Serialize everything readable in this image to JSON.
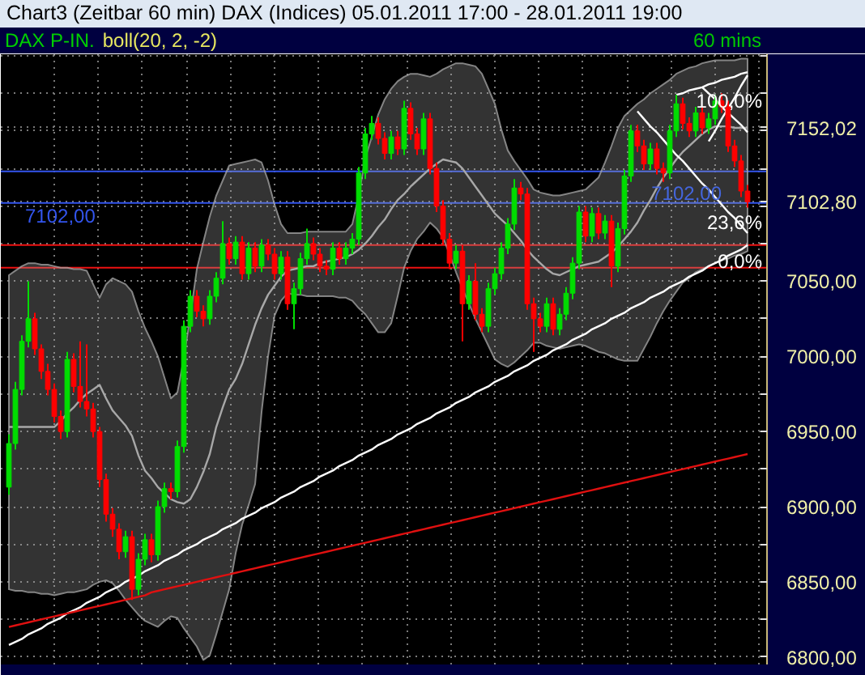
{
  "chart_data": {
    "type": "candlestick",
    "title": "Chart3 (Zeitbar 60 min) DAX (Indices) 05.01.2011 17:00 - 28.01.2011 19:00",
    "subtitle": "DAX P-IN.",
    "annotations": [
      "boll(20, 2, -2)",
      "60 mins",
      {
        "text": "100,0%",
        "y": 7170
      },
      {
        "text": "7102,00",
        "y": 7102
      },
      {
        "text": "23,6%",
        "y": 7089
      },
      {
        "text": "0,0%",
        "y": 7063
      }
    ],
    "categories": [
      null,
      null,
      null,
      null,
      null,
      null,
      null,
      null,
      null,
      null,
      null,
      null,
      null,
      null,
      null,
      null,
      null,
      null,
      null,
      null,
      null,
      null,
      null,
      null,
      null,
      null,
      null,
      null,
      null,
      null,
      null,
      null,
      null,
      null,
      null,
      null,
      null,
      null,
      null,
      null,
      null,
      null,
      null,
      null,
      null,
      null,
      null,
      null,
      null,
      null,
      null,
      null,
      null,
      null,
      null,
      null,
      null,
      null,
      null,
      null,
      null,
      null,
      null,
      null,
      null,
      null,
      null,
      null,
      null,
      null,
      null,
      null,
      null,
      null,
      null,
      null,
      null,
      null,
      null,
      null,
      null,
      null,
      null,
      null,
      null,
      null,
      null,
      null,
      null,
      null,
      null,
      null,
      null,
      null,
      null,
      null,
      null,
      null,
      null,
      null,
      null,
      null,
      null,
      null,
      null,
      null,
      null,
      null,
      null,
      null,
      null,
      null,
      null,
      null,
      null
    ],
    "ohlc": [
      [
        6913,
        6948,
        6908,
        6942
      ],
      [
        6942,
        6983,
        6938,
        6978
      ],
      [
        6978,
        7014,
        6974,
        7010
      ],
      [
        7010,
        7050,
        7006,
        7025
      ],
      [
        7025,
        7029,
        7001,
        7005
      ],
      [
        7005,
        7008,
        6985,
        6990
      ],
      [
        6990,
        6995,
        6974,
        6978
      ],
      [
        6978,
        6982,
        6956,
        6960
      ],
      [
        6960,
        6964,
        6945,
        6950
      ],
      [
        6950,
        7003,
        6946,
        6998
      ],
      [
        6998,
        7002,
        6976,
        6980
      ],
      [
        6980,
        7010,
        6966,
        6970
      ],
      [
        6970,
        7008,
        6960,
        6965
      ],
      [
        6965,
        6969,
        6946,
        6950
      ],
      [
        6950,
        6953,
        6913,
        6918
      ],
      [
        6918,
        6922,
        6890,
        6895
      ],
      [
        6895,
        6899,
        6880,
        6885
      ],
      [
        6885,
        6889,
        6865,
        6870
      ],
      [
        6870,
        6884,
        6866,
        6880
      ],
      [
        6880,
        6884,
        6838,
        6845
      ],
      [
        6845,
        6869,
        6841,
        6865
      ],
      [
        6865,
        6882,
        6861,
        6878
      ],
      [
        6878,
        6882,
        6863,
        6868
      ],
      [
        6868,
        6904,
        6864,
        6900
      ],
      [
        6900,
        6916,
        6896,
        6912
      ],
      [
        6912,
        6916,
        6905,
        6910
      ],
      [
        6910,
        6944,
        6906,
        6940
      ],
      [
        6940,
        7024,
        6936,
        7020
      ],
      [
        7020,
        7044,
        7016,
        7040
      ],
      [
        7040,
        7044,
        7026,
        7030
      ],
      [
        7030,
        7034,
        7020,
        7025
      ],
      [
        7025,
        7044,
        7021,
        7040
      ],
      [
        7040,
        7056,
        7036,
        7052
      ],
      [
        7052,
        7090,
        7048,
        7075
      ],
      [
        7075,
        7079,
        7061,
        7065
      ],
      [
        7065,
        7080,
        7061,
        7076
      ],
      [
        7076,
        7080,
        7051,
        7055
      ],
      [
        7055,
        7076,
        7051,
        7072
      ],
      [
        7072,
        7076,
        7056,
        7060
      ],
      [
        7060,
        7078,
        7056,
        7074
      ],
      [
        7074,
        7078,
        7064,
        7068
      ],
      [
        7068,
        7072,
        7051,
        7055
      ],
      [
        7055,
        7070,
        7051,
        7066
      ],
      [
        7066,
        7070,
        7031,
        7035
      ],
      [
        7035,
        7049,
        7018,
        7045
      ],
      [
        7045,
        7069,
        7041,
        7065
      ],
      [
        7065,
        7085,
        7061,
        7075
      ],
      [
        7075,
        7079,
        7064,
        7068
      ],
      [
        7068,
        7072,
        7056,
        7060
      ],
      [
        7060,
        7064,
        7054,
        7058
      ],
      [
        7058,
        7076,
        7054,
        7072
      ],
      [
        7072,
        7076,
        7061,
        7065
      ],
      [
        7065,
        7076,
        7061,
        7072
      ],
      [
        7072,
        7082,
        7068,
        7078
      ],
      [
        7078,
        7126,
        7074,
        7122
      ],
      [
        7122,
        7152,
        7118,
        7148
      ],
      [
        7148,
        7160,
        7144,
        7155
      ],
      [
        7155,
        7159,
        7141,
        7145
      ],
      [
        7145,
        7149,
        7131,
        7135
      ],
      [
        7135,
        7150,
        7131,
        7146
      ],
      [
        7146,
        7150,
        7134,
        7138
      ],
      [
        7138,
        7170,
        7134,
        7165
      ],
      [
        7165,
        7169,
        7144,
        7148
      ],
      [
        7148,
        7152,
        7134,
        7138
      ],
      [
        7138,
        7162,
        7134,
        7158
      ],
      [
        7158,
        7162,
        7121,
        7125
      ],
      [
        7125,
        7129,
        7096,
        7100
      ],
      [
        7100,
        7104,
        7074,
        7078
      ],
      [
        7078,
        7082,
        7058,
        7062
      ],
      [
        7062,
        7074,
        7058,
        7070
      ],
      [
        7070,
        7074,
        7010,
        7035
      ],
      [
        7035,
        7054,
        7031,
        7050
      ],
      [
        7050,
        7062,
        7024,
        7028
      ],
      [
        7028,
        7032,
        7016,
        7020
      ],
      [
        7020,
        7049,
        7016,
        7045
      ],
      [
        7045,
        7059,
        7041,
        7055
      ],
      [
        7055,
        7076,
        7051,
        7072
      ],
      [
        7072,
        7092,
        7068,
        7088
      ],
      [
        7088,
        7118,
        7084,
        7112
      ],
      [
        7112,
        7116,
        7104,
        7108
      ],
      [
        7108,
        7112,
        7031,
        7035
      ],
      [
        7035,
        7039,
        7003,
        7025
      ],
      [
        7025,
        7029,
        7016,
        7020
      ],
      [
        7020,
        7039,
        7016,
        7035
      ],
      [
        7035,
        7039,
        7014,
        7018
      ],
      [
        7018,
        7032,
        7014,
        7028
      ],
      [
        7028,
        7046,
        7024,
        7042
      ],
      [
        7042,
        7066,
        7038,
        7062
      ],
      [
        7062,
        7100,
        7058,
        7096
      ],
      [
        7096,
        7100,
        7076,
        7080
      ],
      [
        7080,
        7099,
        7076,
        7095
      ],
      [
        7095,
        7099,
        7078,
        7082
      ],
      [
        7082,
        7094,
        7078,
        7090
      ],
      [
        7090,
        7094,
        7046,
        7060
      ],
      [
        7060,
        7089,
        7056,
        7085
      ],
      [
        7085,
        7124,
        7081,
        7120
      ],
      [
        7120,
        7154,
        7116,
        7150
      ],
      [
        7150,
        7154,
        7136,
        7140
      ],
      [
        7140,
        7144,
        7124,
        7128
      ],
      [
        7128,
        7142,
        7124,
        7138
      ],
      [
        7138,
        7142,
        7121,
        7125
      ],
      [
        7125,
        7129,
        7116,
        7122
      ],
      [
        7122,
        7154,
        7118,
        7150
      ],
      [
        7150,
        7174,
        7146,
        7168
      ],
      [
        7168,
        7172,
        7151,
        7155
      ],
      [
        7155,
        7159,
        7146,
        7150
      ],
      [
        7150,
        7166,
        7146,
        7162
      ],
      [
        7162,
        7166,
        7148,
        7152
      ],
      [
        7152,
        7162,
        7148,
        7158
      ],
      [
        7158,
        7174,
        7154,
        7170
      ],
      [
        7170,
        7175,
        7162,
        7166
      ],
      [
        7166,
        7170,
        7136,
        7140
      ],
      [
        7140,
        7144,
        7126,
        7130
      ],
      [
        7130,
        7134,
        7106,
        7110
      ],
      [
        7110,
        7114,
        7099,
        7102.8
      ]
    ],
    "colors": [
      "#00dd00",
      "#00dd00",
      "#00dd00",
      "#00dd00",
      "#ff0000",
      "#ff0000",
      "#ff0000",
      "#ff0000",
      "#ff0000",
      "#00dd00",
      "#ff0000",
      "#ff0000",
      "#ff0000",
      "#ff0000",
      "#ff0000",
      "#ff0000",
      "#ff0000",
      "#ff0000",
      "#00dd00",
      "#ff0000",
      "#00dd00",
      "#00dd00",
      "#ff0000",
      "#00dd00",
      "#00dd00",
      "#ff0000",
      "#00dd00",
      "#00dd00",
      "#00dd00",
      "#ff0000",
      "#ff0000",
      "#00dd00",
      "#00dd00",
      "#00dd00",
      "#ff0000",
      "#00dd00",
      "#ff0000",
      "#00dd00",
      "#ff0000",
      "#00dd00",
      "#ff0000",
      "#ff0000",
      "#00dd00",
      "#ff0000",
      "#00dd00",
      "#00dd00",
      "#00dd00",
      "#ff0000",
      "#ff0000",
      "#ff0000",
      "#00dd00",
      "#ff0000",
      "#00dd00",
      "#00dd00",
      "#00dd00",
      "#00dd00",
      "#00dd00",
      "#ff0000",
      "#ff0000",
      "#00dd00",
      "#ff0000",
      "#00dd00",
      "#ff0000",
      "#ff0000",
      "#00dd00",
      "#ff0000",
      "#ff0000",
      "#ff0000",
      "#ff0000",
      "#00dd00",
      "#ff0000",
      "#00dd00",
      "#ff0000",
      "#ff0000",
      "#00dd00",
      "#00dd00",
      "#00dd00",
      "#00dd00",
      "#00dd00",
      "#ff0000",
      "#ff0000",
      "#ff0000",
      "#ff0000",
      "#00dd00",
      "#ff0000",
      "#00dd00",
      "#00dd00",
      "#00dd00",
      "#00dd00",
      "#ff0000",
      "#00dd00",
      "#ff0000",
      "#00dd00",
      "#ff0000",
      "#00dd00",
      "#00dd00",
      "#00dd00",
      "#ff0000",
      "#ff0000",
      "#00dd00",
      "#ff0000",
      "#ff0000",
      "#00dd00",
      "#00dd00",
      "#ff0000",
      "#ff0000",
      "#00dd00",
      "#ff0000",
      "#00dd00",
      "#00dd00",
      "#ff0000",
      "#ff0000",
      "#ff0000",
      "#ff0000",
      "#ff0000"
    ],
    "series": [
      {
        "type": "line",
        "color": "#a8a8a8",
        "values": [
          6953,
          6953,
          6953,
          6953,
          6953,
          6953,
          6953,
          6953,
          6957,
          6962,
          6966,
          6971,
          6975,
          6978,
          6981,
          6972,
          6964,
          6959,
          6954,
          6947,
          6934,
          6924,
          6919,
          6913,
          6909,
          6905,
          6903,
          6902,
          6905,
          6913,
          6923,
          6935,
          6953,
          6966,
          6978,
          6985,
          6995,
          7008,
          7021,
          7032,
          7041,
          7047,
          7053,
          7057,
          7058,
          7059,
          7060,
          7060,
          7062,
          7063,
          7064,
          7065,
          7066,
          7068,
          7071,
          7075,
          7080,
          7086,
          7091,
          7098,
          7104,
          7108,
          7113,
          7117,
          7121,
          7125,
          7128,
          7131,
          7130,
          7129,
          7125,
          7119,
          7113,
          7107,
          7101,
          7095,
          7091,
          7087,
          7082,
          7077,
          7071,
          7066,
          7062,
          7058,
          7055,
          7054,
          7056,
          7058,
          7060,
          7061,
          7062,
          7063,
          7066,
          7069,
          7073,
          7078,
          7083,
          7089,
          7097,
          7104,
          7112,
          7119,
          7125,
          7131,
          7136,
          7140,
          7144,
          7148,
          7151,
          7153,
          7153,
          7153,
          7152,
          7152,
          7152
        ],
        "lower": [
          6845,
          6844,
          6844,
          6843,
          6843,
          6842,
          6842,
          6841,
          6842,
          6843,
          6843,
          6844,
          6845,
          6848,
          6850,
          6851,
          6849,
          6844,
          6838,
          6833,
          6828,
          6824,
          6822,
          6820,
          6824,
          6827,
          6826,
          6819,
          6813,
          6807,
          6798,
          6801,
          6815,
          6830,
          6845,
          6869,
          6888,
          6901,
          6915,
          6963,
          7000,
          7027,
          7037,
          7042,
          7041,
          7041,
          7040,
          7040,
          7040,
          7040,
          7040,
          7039,
          7039,
          7037,
          7032,
          7028,
          7022,
          7016,
          7016,
          7022,
          7040,
          7059,
          7070,
          7078,
          7083,
          7089,
          7085,
          7079,
          7068,
          7056,
          7045,
          7035,
          7025,
          7016,
          7007,
          6998,
          6995,
          6993,
          6996,
          7000,
          7004,
          7009,
          7009,
          7007,
          7006,
          7005,
          7006,
          7007,
          7008,
          7007,
          7005,
          7003,
          7002,
          7000,
          6998,
          6997,
          6997,
          6997,
          7005,
          7013,
          7022,
          7030,
          7037,
          7043,
          7049,
          7052,
          7056,
          7058,
          7060,
          7062,
          7064,
          7065,
          7067,
          7068,
          7070
        ],
        "upper": [
          7054,
          7057,
          7060,
          7062,
          7062,
          7061,
          7061,
          7060,
          7059,
          7059,
          7058,
          7058,
          7057,
          7048,
          7039,
          7048,
          7052,
          7050,
          7048,
          7043,
          7030,
          7019,
          7010,
          7000,
          6986,
          6972,
          6976,
          6999,
          7027,
          7058,
          7076,
          7093,
          7107,
          7117,
          7127,
          7128,
          7129,
          7130,
          7131,
          7129,
          7117,
          7101,
          7088,
          7082,
          7082,
          7082,
          7083,
          7083,
          7083,
          7083,
          7083,
          7083,
          7083,
          7088,
          7107,
          7132,
          7146,
          7161,
          7171,
          7178,
          7183,
          7186,
          7188,
          7188,
          7187,
          7186,
          7188,
          7191,
          7193,
          7195,
          7195,
          7194,
          7193,
          7188,
          7178,
          7168,
          7151,
          7137,
          7130,
          7124,
          7118,
          7111,
          7109,
          7108,
          7107,
          7107,
          7108,
          7109,
          7110,
          7111,
          7115,
          7119,
          7129,
          7140,
          7152,
          7160,
          7164,
          7168,
          7171,
          7175,
          7178,
          7181,
          7184,
          7188,
          7190,
          7192,
          7193,
          7195,
          7196,
          7197,
          7197,
          7197,
          7197,
          7198,
          7198
        ]
      },
      {
        "type": "line",
        "color": "#ffffff",
        "values": [
          6808,
          6810,
          6812,
          6815,
          6817,
          6819,
          6822,
          6824,
          6826,
          6829,
          6831,
          6833,
          6836,
          6838,
          6840,
          6843,
          6845,
          6847,
          6850,
          6852,
          6854,
          6857,
          6859,
          6861,
          6864,
          6866,
          6868,
          6871,
          6873,
          6875,
          6878,
          6880,
          6882,
          6885,
          6887,
          6889,
          6892,
          6894,
          6896,
          6899,
          6901,
          6903,
          6906,
          6908,
          6910,
          6913,
          6915,
          6917,
          6920,
          6922,
          6924,
          6927,
          6929,
          6931,
          6934,
          6936,
          6938,
          6941,
          6943,
          6945,
          6948,
          6950,
          6952,
          6955,
          6957,
          6959,
          6962,
          6964,
          6966,
          6969,
          6971,
          6973,
          6976,
          6978,
          6980,
          6983,
          6985,
          6987,
          6990,
          6992,
          6994,
          6997,
          6999,
          7001,
          7004,
          7006,
          7008,
          7011,
          7013,
          7015,
          7018,
          7020,
          7022,
          7025,
          7027,
          7029,
          7032,
          7034,
          7036,
          7039,
          7041,
          7043,
          7046,
          7048,
          7050,
          7053,
          7055,
          7057,
          7060,
          7062,
          7064,
          7067,
          7069,
          7071,
          7074
        ]
      },
      {
        "type": "line",
        "color": "#e01010",
        "values": [
          6820,
          6821,
          6822,
          6823,
          6824,
          6825,
          6826,
          6827,
          6828,
          6829,
          6830,
          6831,
          6832,
          6833,
          6834,
          6835,
          6836,
          6837,
          6838,
          6839,
          6840,
          6841,
          6843,
          6844,
          6845,
          6846,
          6847,
          6848,
          6849,
          6850,
          6851,
          6852,
          6853,
          6854,
          6855,
          6856,
          6857,
          6858,
          6859,
          6860,
          6861,
          6862,
          6863,
          6864,
          6865,
          6866,
          6867,
          6868,
          6869,
          6870,
          6871,
          6872,
          6873,
          6874,
          6875,
          6876,
          6877,
          6878,
          6879,
          6880,
          6881,
          6882,
          6883,
          6884,
          6885,
          6886,
          6887,
          6888,
          6889,
          6890,
          6891,
          6892,
          6893,
          6894,
          6895,
          6896,
          6897,
          6898,
          6899,
          6900,
          6901,
          6902,
          6903,
          6904,
          6905,
          6906,
          6907,
          6908,
          6909,
          6910,
          6911,
          6912,
          6913,
          6914,
          6915,
          6916,
          6917,
          6918,
          6919,
          6920,
          6921,
          6922,
          6923,
          6924,
          6925,
          6926,
          6927,
          6928,
          6929,
          6930,
          6931,
          6932,
          6933,
          6934,
          6935
        ]
      },
      {
        "type": "line",
        "color": "#ffffff",
        "values": [
          null,
          null,
          null,
          null,
          null,
          null,
          null,
          null,
          null,
          null,
          null,
          null,
          null,
          null,
          null,
          null,
          null,
          null,
          null,
          null,
          null,
          null,
          null,
          null,
          null,
          null,
          null,
          null,
          null,
          null,
          null,
          null,
          null,
          null,
          null,
          null,
          null,
          null,
          null,
          null,
          null,
          null,
          null,
          null,
          null,
          null,
          null,
          null,
          null,
          null,
          null,
          null,
          null,
          null,
          null,
          null,
          null,
          null,
          null,
          null,
          null,
          null,
          null,
          null,
          null,
          null,
          null,
          null,
          null,
          null,
          null,
          null,
          null,
          null,
          null,
          null,
          null,
          null,
          null,
          null,
          null,
          null,
          null,
          null,
          null,
          null,
          null,
          null,
          null,
          null,
          null,
          null,
          null,
          null,
          null,
          null,
          null,
          7163,
          7158,
          7153,
          7149,
          7144,
          7139,
          7134,
          7130,
          7125,
          7120,
          7115,
          7111,
          7106,
          7101,
          7096,
          7092,
          7087,
          7082
        ]
      },
      {
        "type": "line",
        "color": "#ffffff",
        "values": [
          null,
          null,
          null,
          null,
          null,
          null,
          null,
          null,
          null,
          null,
          null,
          null,
          null,
          null,
          null,
          null,
          null,
          null,
          null,
          null,
          null,
          null,
          null,
          null,
          null,
          null,
          null,
          null,
          null,
          null,
          null,
          null,
          null,
          null,
          null,
          null,
          null,
          null,
          null,
          null,
          null,
          null,
          null,
          null,
          null,
          null,
          null,
          null,
          null,
          null,
          null,
          null,
          null,
          null,
          null,
          null,
          null,
          null,
          null,
          null,
          null,
          null,
          null,
          null,
          null,
          null,
          null,
          null,
          null,
          null,
          null,
          null,
          null,
          null,
          null,
          null,
          null,
          null,
          null,
          null,
          null,
          null,
          null,
          null,
          null,
          null,
          null,
          null,
          null,
          null,
          null,
          null,
          null,
          null,
          null,
          null,
          null,
          null,
          null,
          null,
          null,
          null,
          null,
          7174,
          7175,
          7177,
          7178,
          7179,
          7181,
          7182,
          7184,
          7185,
          7186,
          7188,
          7189
        ]
      },
      {
        "type": "line",
        "color": "#ffffff",
        "values": [
          null,
          null,
          null,
          null,
          null,
          null,
          null,
          null,
          null,
          null,
          null,
          null,
          null,
          null,
          null,
          null,
          null,
          null,
          null,
          null,
          null,
          null,
          null,
          null,
          null,
          null,
          null,
          null,
          null,
          null,
          null,
          null,
          null,
          null,
          null,
          null,
          null,
          null,
          null,
          null,
          null,
          null,
          null,
          null,
          null,
          null,
          null,
          null,
          null,
          null,
          null,
          null,
          null,
          null,
          null,
          null,
          null,
          null,
          null,
          null,
          null,
          null,
          null,
          null,
          null,
          null,
          null,
          null,
          null,
          null,
          null,
          null,
          null,
          null,
          null,
          null,
          null,
          null,
          null,
          null,
          null,
          null,
          null,
          null,
          null,
          null,
          null,
          null,
          null,
          null,
          null,
          null,
          null,
          null,
          null,
          null,
          null,
          null,
          null,
          null,
          null,
          null,
          null,
          null,
          null,
          null,
          null,
          null,
          7143,
          7150,
          7158,
          7165,
          7172,
          7180,
          7187
        ]
      },
      {
        "type": "line",
        "color": "#ffffff",
        "values": [
          null,
          null,
          null,
          null,
          null,
          null,
          null,
          null,
          null,
          null,
          null,
          null,
          null,
          null,
          null,
          null,
          null,
          null,
          null,
          null,
          null,
          null,
          null,
          null,
          null,
          null,
          null,
          null,
          null,
          null,
          null,
          null,
          null,
          null,
          null,
          null,
          null,
          null,
          null,
          null,
          null,
          null,
          null,
          null,
          null,
          null,
          null,
          null,
          null,
          null,
          null,
          null,
          null,
          null,
          null,
          null,
          null,
          null,
          null,
          null,
          null,
          null,
          null,
          null,
          null,
          null,
          null,
          null,
          null,
          null,
          null,
          null,
          null,
          null,
          null,
          null,
          null,
          null,
          null,
          null,
          null,
          null,
          null,
          null,
          null,
          null,
          null,
          null,
          null,
          null,
          null,
          null,
          null,
          null,
          null,
          null,
          null,
          null,
          null,
          null,
          null,
          null,
          null,
          null,
          null,
          null,
          null,
          7179,
          7175,
          7171,
          7166,
          7162,
          7158,
          7154,
          7149
        ]
      }
    ],
    "ref_lines": [
      {
        "axis": "y",
        "value": 7123,
        "color": "#3355ee"
      },
      {
        "axis": "y",
        "value": 7102,
        "label": "7102,00",
        "color": "#3355ee"
      },
      {
        "axis": "y",
        "value": 7074,
        "color": "#ee1111"
      },
      {
        "axis": "y",
        "value": 7059,
        "color": "#ee1111"
      }
    ],
    "ylim": [
      6795,
      7201
    ],
    "yticks": [
      {
        "value": 6800,
        "label": "6800,00"
      },
      {
        "value": 6825,
        "label": null
      },
      {
        "value": 6850,
        "label": "6850,00"
      },
      {
        "value": 6875,
        "label": null
      },
      {
        "value": 6900,
        "label": "6900,00"
      },
      {
        "value": 6925,
        "label": null
      },
      {
        "value": 6950,
        "label": "6950,00"
      },
      {
        "value": 6975,
        "label": null
      },
      {
        "value": 7000,
        "label": "7000,00"
      },
      {
        "value": 7025,
        "label": null
      },
      {
        "value": 7050,
        "label": "7050,00"
      },
      {
        "value": 7075,
        "label": null
      },
      {
        "value": 7100,
        "label": null
      },
      {
        "value": 7102.8,
        "label": "7102,80"
      },
      {
        "value": 7125,
        "label": null
      },
      {
        "value": 7150,
        "label": null
      },
      {
        "value": 7152.02,
        "label": "7152,02"
      },
      {
        "value": 7175,
        "label": null
      },
      {
        "value": 7200,
        "label": null
      }
    ],
    "grid": true,
    "tick_labels": "y"
  }
}
